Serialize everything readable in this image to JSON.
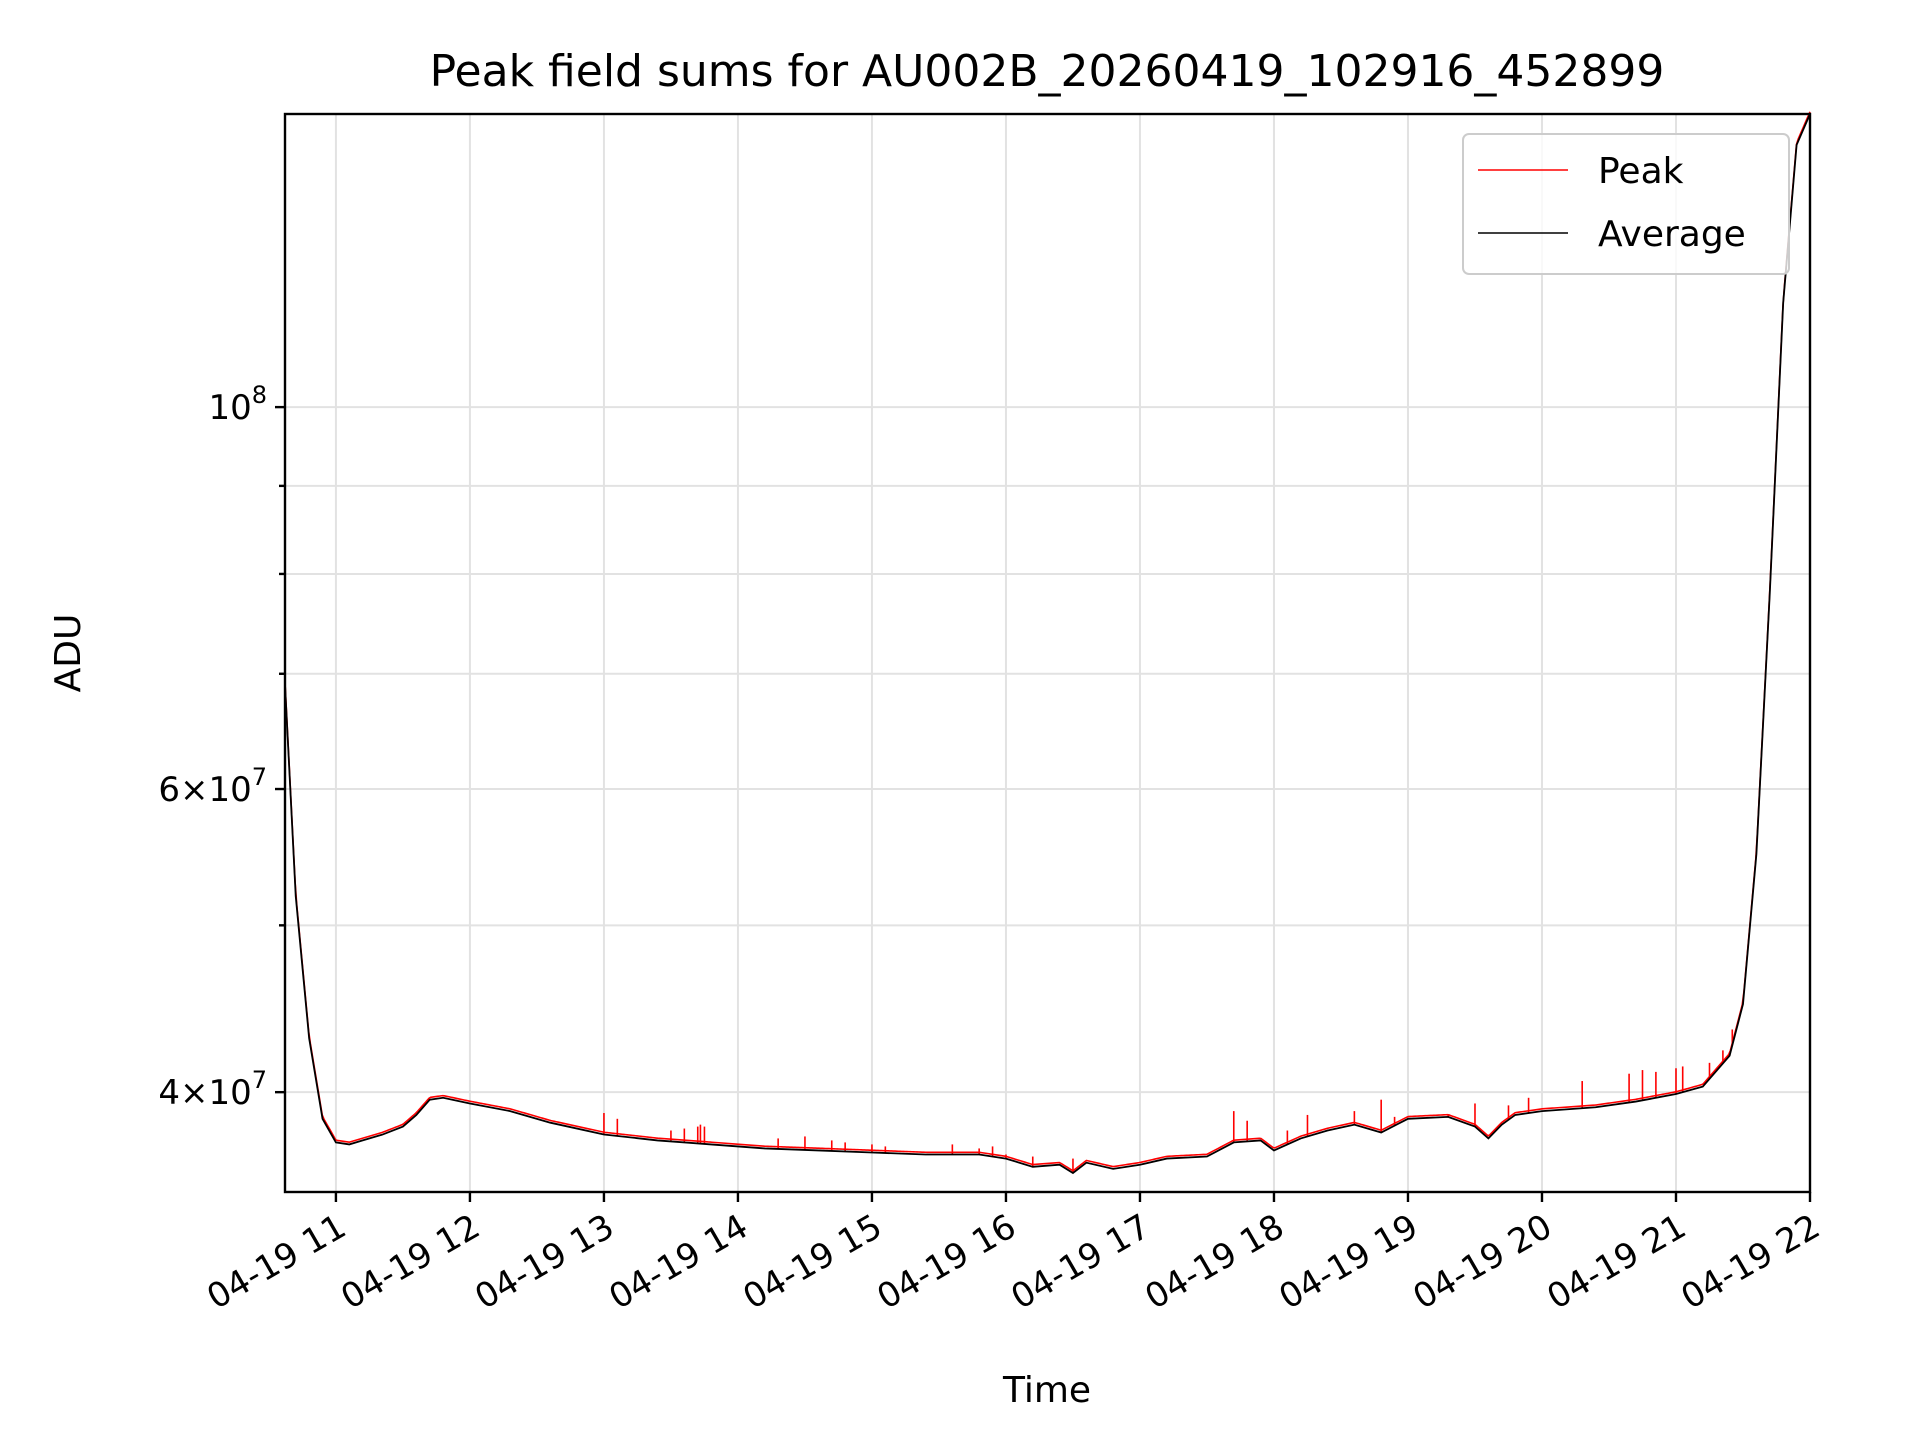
{
  "chart_data": {
    "type": "line",
    "title": "Peak field sums for AU002B_20260419_102916_452899",
    "xlabel": "Time",
    "ylabel": "ADU",
    "yscale": "log",
    "xlim_hours": [
      10.62,
      22.0
    ],
    "ylim": [
      35000000,
      148000000
    ],
    "grid": true,
    "legend_position": "upper right",
    "x_tick_values_hours": [
      11,
      12,
      13,
      14,
      15,
      16,
      17,
      18,
      19,
      20,
      21,
      22
    ],
    "x_tick_labels": [
      "04-19 11",
      "04-19 12",
      "04-19 13",
      "04-19 14",
      "04-19 15",
      "04-19 16",
      "04-19 17",
      "04-19 18",
      "04-19 19",
      "04-19 20",
      "04-19 21",
      "04-19 22"
    ],
    "y_tick_values": [
      40000000,
      60000000,
      100000000
    ],
    "y_tick_labels": [
      {
        "base": "4",
        "sep": "×",
        "pow": "10",
        "exp": "7"
      },
      {
        "base": "6",
        "sep": "×",
        "pow": "10",
        "exp": "7"
      },
      {
        "base": "",
        "sep": "",
        "pow": "10",
        "exp": "8"
      }
    ],
    "y_minor_tick_values": [
      50000000,
      70000000,
      80000000,
      90000000
    ],
    "series": [
      {
        "name": "Peak",
        "color": "#ff0000",
        "spikes": [
          [
            13.0,
            38900000
          ],
          [
            13.1,
            38600000
          ],
          [
            13.5,
            38000000
          ],
          [
            13.6,
            38100000
          ],
          [
            13.7,
            38200000
          ],
          [
            13.72,
            38300000
          ],
          [
            13.75,
            38200000
          ],
          [
            14.3,
            37600000
          ],
          [
            14.5,
            37700000
          ],
          [
            14.7,
            37500000
          ],
          [
            14.8,
            37400000
          ],
          [
            15.0,
            37300000
          ],
          [
            15.1,
            37200000
          ],
          [
            15.6,
            37300000
          ],
          [
            15.8,
            37100000
          ],
          [
            15.9,
            37200000
          ],
          [
            16.0,
            36800000
          ],
          [
            16.2,
            36700000
          ],
          [
            16.5,
            36600000
          ],
          [
            17.7,
            39000000
          ],
          [
            17.8,
            38500000
          ],
          [
            18.1,
            38000000
          ],
          [
            18.25,
            38800000
          ],
          [
            18.6,
            39000000
          ],
          [
            18.8,
            39600000
          ],
          [
            18.9,
            38700000
          ],
          [
            19.3,
            38800000
          ],
          [
            19.5,
            39400000
          ],
          [
            19.75,
            39300000
          ],
          [
            19.9,
            39700000
          ],
          [
            20.3,
            40600000
          ],
          [
            20.65,
            41000000
          ],
          [
            20.75,
            41200000
          ],
          [
            20.85,
            41100000
          ],
          [
            21.0,
            41300000
          ],
          [
            21.05,
            41400000
          ],
          [
            21.25,
            41600000
          ],
          [
            21.35,
            42300000
          ],
          [
            21.42,
            43500000
          ]
        ]
      },
      {
        "name": "Average",
        "color": "#000000",
        "points": [
          [
            10.62,
            69000000
          ],
          [
            10.7,
            52000000
          ],
          [
            10.8,
            43000000
          ],
          [
            10.9,
            38600000
          ],
          [
            11.0,
            37400000
          ],
          [
            11.1,
            37300000
          ],
          [
            11.2,
            37500000
          ],
          [
            11.35,
            37800000
          ],
          [
            11.5,
            38200000
          ],
          [
            11.6,
            38800000
          ],
          [
            11.7,
            39600000
          ],
          [
            11.8,
            39700000
          ],
          [
            12.0,
            39400000
          ],
          [
            12.3,
            39000000
          ],
          [
            12.6,
            38400000
          ],
          [
            13.0,
            37800000
          ],
          [
            13.4,
            37500000
          ],
          [
            13.8,
            37300000
          ],
          [
            14.2,
            37100000
          ],
          [
            14.6,
            37000000
          ],
          [
            15.0,
            36900000
          ],
          [
            15.4,
            36800000
          ],
          [
            15.8,
            36800000
          ],
          [
            16.0,
            36600000
          ],
          [
            16.2,
            36200000
          ],
          [
            16.4,
            36300000
          ],
          [
            16.5,
            35900000
          ],
          [
            16.6,
            36400000
          ],
          [
            16.8,
            36100000
          ],
          [
            17.0,
            36300000
          ],
          [
            17.2,
            36600000
          ],
          [
            17.5,
            36700000
          ],
          [
            17.7,
            37400000
          ],
          [
            17.9,
            37500000
          ],
          [
            18.0,
            37000000
          ],
          [
            18.2,
            37600000
          ],
          [
            18.4,
            38000000
          ],
          [
            18.6,
            38300000
          ],
          [
            18.8,
            37900000
          ],
          [
            19.0,
            38600000
          ],
          [
            19.3,
            38700000
          ],
          [
            19.5,
            38200000
          ],
          [
            19.6,
            37600000
          ],
          [
            19.7,
            38300000
          ],
          [
            19.8,
            38800000
          ],
          [
            20.0,
            39000000
          ],
          [
            20.4,
            39200000
          ],
          [
            20.7,
            39500000
          ],
          [
            21.0,
            39900000
          ],
          [
            21.2,
            40300000
          ],
          [
            21.4,
            42000000
          ],
          [
            21.5,
            45000000
          ],
          [
            21.6,
            55000000
          ],
          [
            21.7,
            78000000
          ],
          [
            21.8,
            115000000
          ],
          [
            21.9,
            142000000
          ],
          [
            22.0,
            148000000
          ]
        ]
      }
    ]
  }
}
